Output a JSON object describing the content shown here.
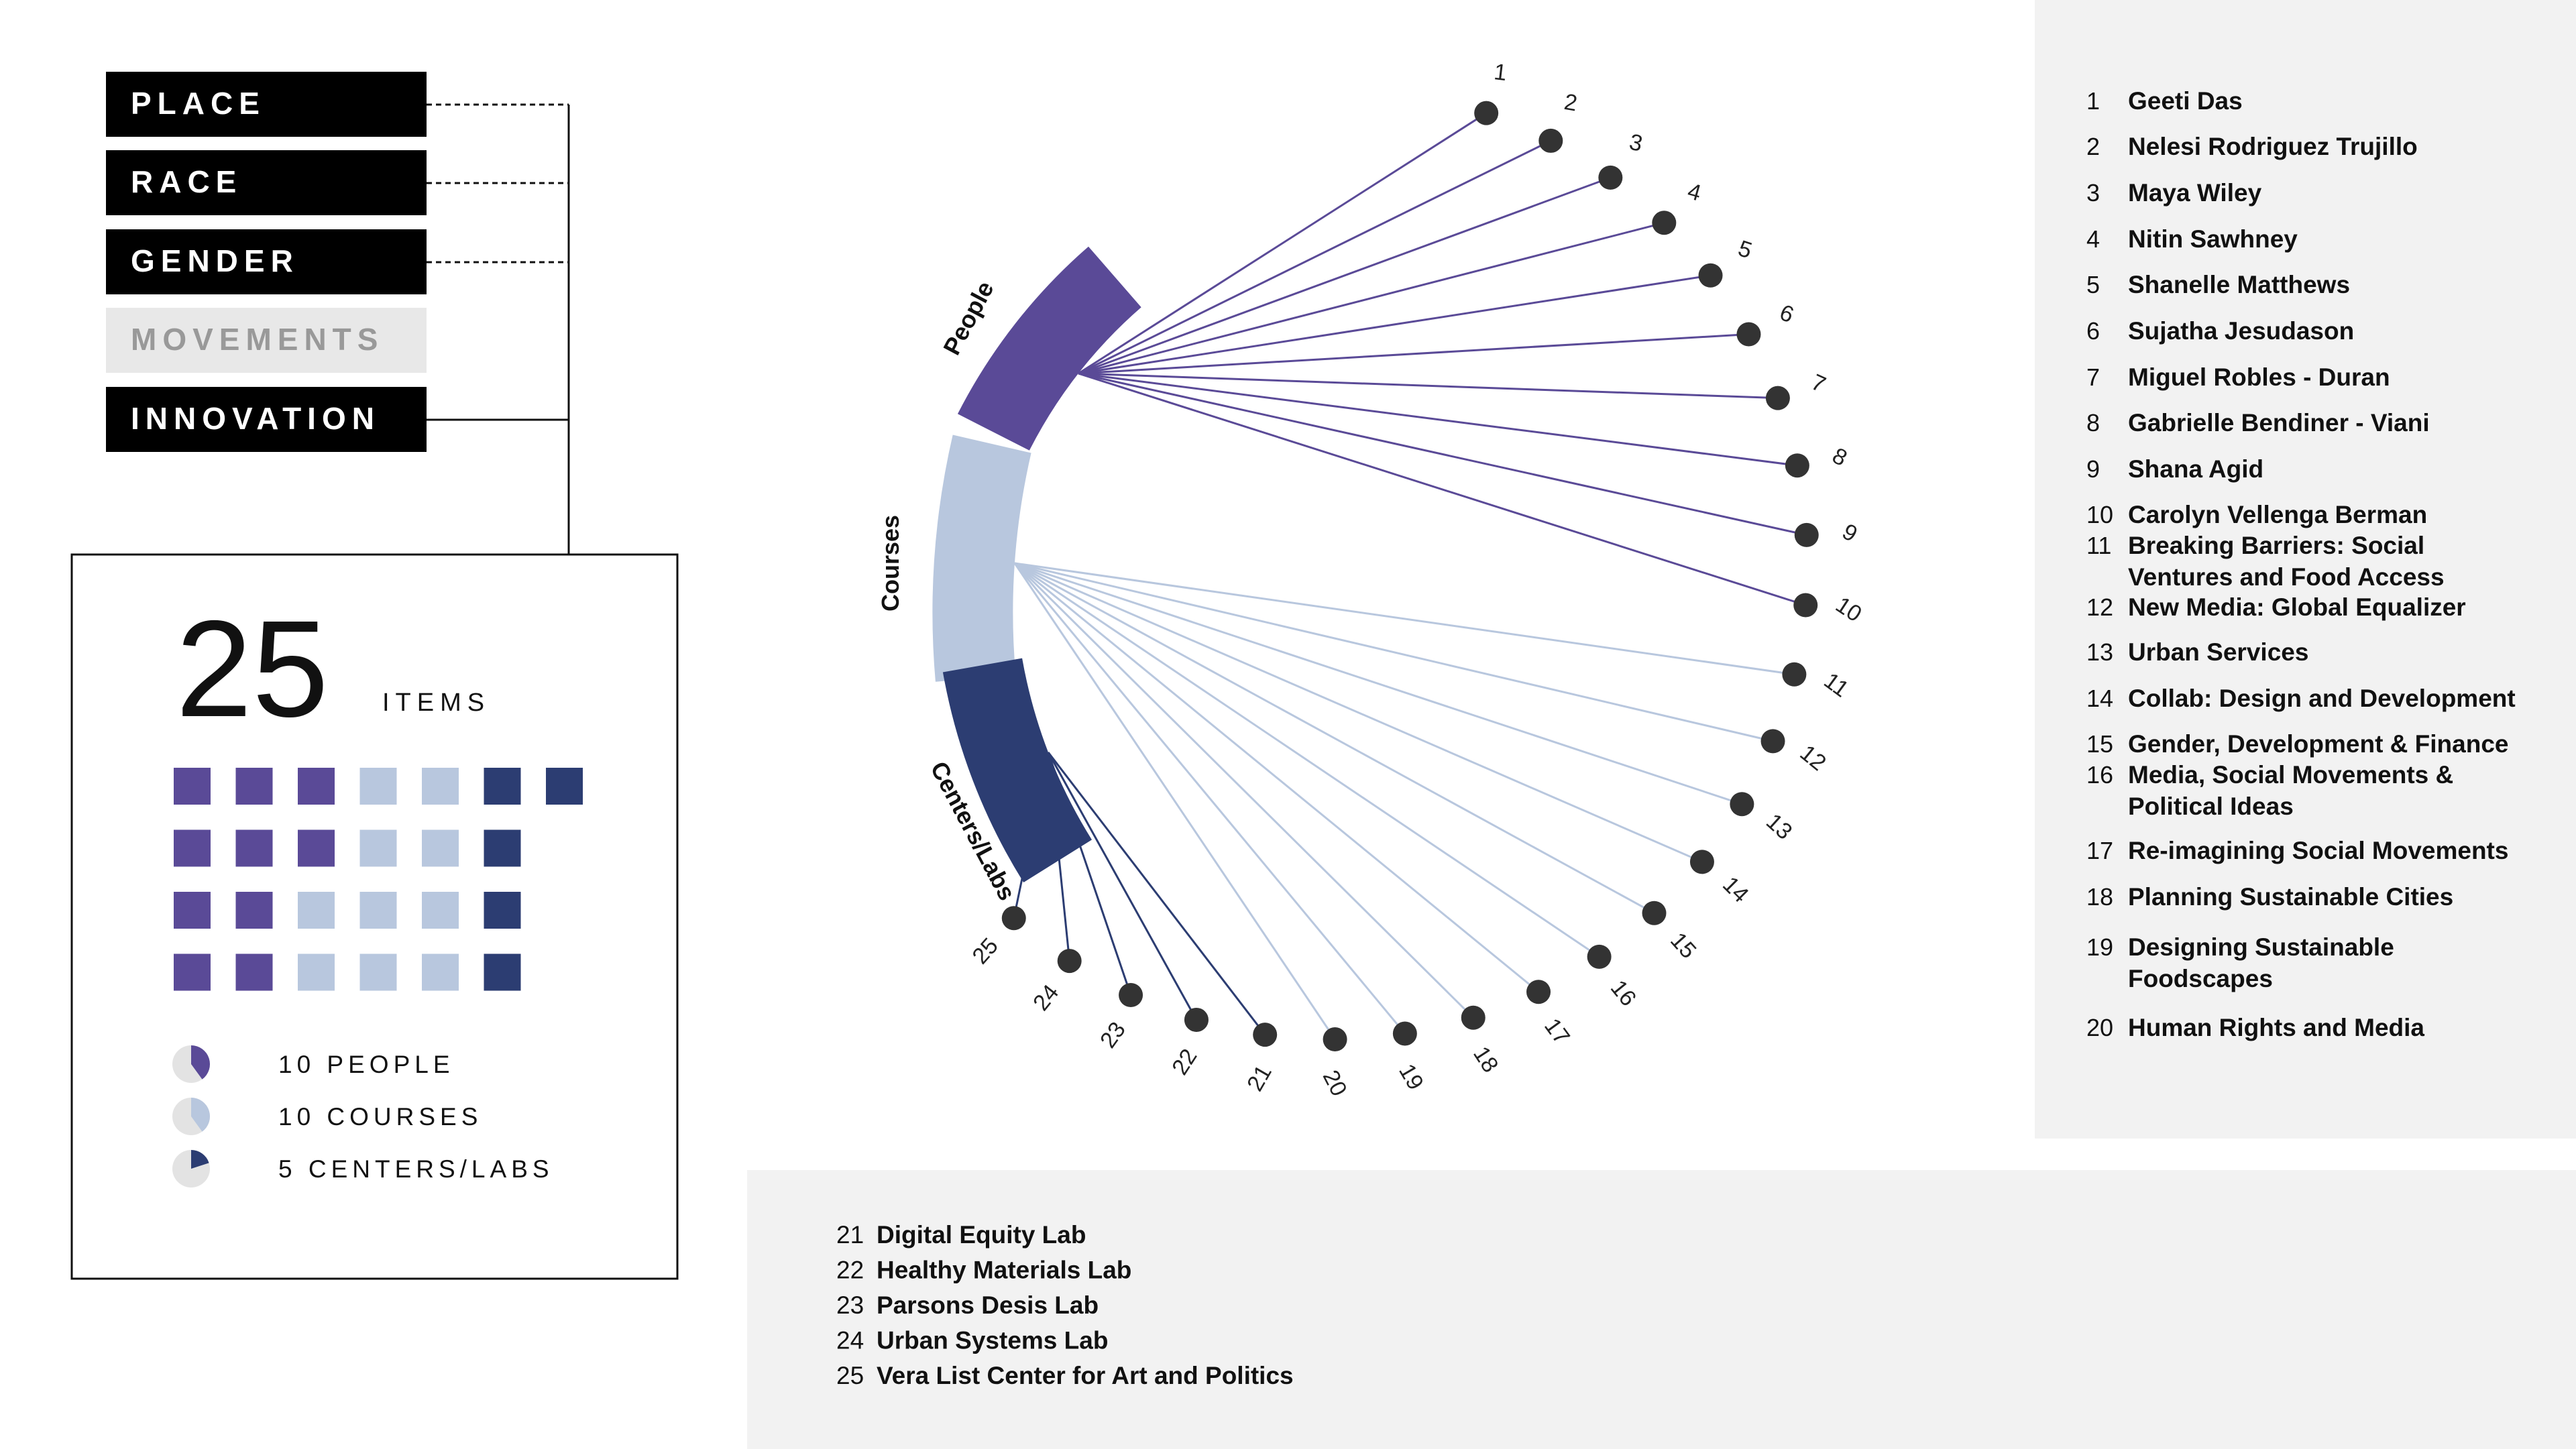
{
  "categories": [
    {
      "label": "PLACE",
      "active": true,
      "connector": "dashed"
    },
    {
      "label": "RACE",
      "active": true,
      "connector": "dashed"
    },
    {
      "label": "GENDER",
      "active": true,
      "connector": "dashed"
    },
    {
      "label": "MOVEMENTS",
      "active": false,
      "connector": "none"
    },
    {
      "label": "INNOVATION",
      "active": true,
      "connector": "solid"
    }
  ],
  "summary": {
    "total": "25",
    "total_label": "ITEMS",
    "grid_rows": [
      [
        "people",
        "people",
        "people",
        "courses",
        "courses",
        "centers",
        "centers"
      ],
      [
        "people",
        "people",
        "people",
        "courses",
        "courses",
        "centers"
      ],
      [
        "people",
        "people",
        "courses",
        "courses",
        "courses",
        "centers"
      ],
      [
        "people",
        "people",
        "courses",
        "courses",
        "courses",
        "centers"
      ]
    ],
    "legend": [
      {
        "label": "10 PEOPLE",
        "group": "people",
        "fraction": 0.4
      },
      {
        "label": "10 COURSES",
        "group": "courses",
        "fraction": 0.4
      },
      {
        "label": "5 CENTERS/LABS",
        "group": "centers",
        "fraction": 0.2
      }
    ]
  },
  "colors": {
    "people": "#5a4a97",
    "courses": "#b8c7de",
    "centers": "#2c3d72",
    "node": "#333333",
    "panel": "#f2f2f2",
    "inactive": "#e8e8e8",
    "inactive_text": "#999999",
    "pie_bg": "#e3e3e3"
  },
  "chart_data": {
    "type": "radial-network",
    "groups": [
      {
        "label": "People",
        "key": "people",
        "nodes": [
          1,
          2,
          3,
          4,
          5,
          6,
          7,
          8,
          9,
          10
        ]
      },
      {
        "label": "Courses",
        "key": "courses",
        "nodes": [
          11,
          12,
          13,
          14,
          15,
          16,
          17,
          18,
          19,
          20
        ]
      },
      {
        "label": "Centers/Labs",
        "key": "centers",
        "nodes": [
          21,
          22,
          23,
          24,
          25
        ]
      }
    ],
    "nodes": [
      {
        "num": "1",
        "name": "Geeti Das"
      },
      {
        "num": "2",
        "name": "Nelesi Rodriguez Trujillo"
      },
      {
        "num": "3",
        "name": "Maya Wiley"
      },
      {
        "num": "4",
        "name": "Nitin Sawhney"
      },
      {
        "num": "5",
        "name": "Shanelle Matthews"
      },
      {
        "num": "6",
        "name": "Sujatha Jesudason"
      },
      {
        "num": "7",
        "name": "Miguel Robles - Duran"
      },
      {
        "num": "8",
        "name": "Gabrielle Bendiner - Viani"
      },
      {
        "num": "9",
        "name": "Shana Agid"
      },
      {
        "num": "10",
        "name": "Carolyn Vellenga Berman"
      },
      {
        "num": "11",
        "name": "Breaking Barriers: Social Ventures and Food Access"
      },
      {
        "num": "12",
        "name": "New Media: Global Equalizer"
      },
      {
        "num": "13",
        "name": "Urban Services"
      },
      {
        "num": "14",
        "name": "Collab: Design and Development"
      },
      {
        "num": "15",
        "name": "Gender, Development & Finance"
      },
      {
        "num": "16",
        "name": "Media, Social Movements & Political Ideas"
      },
      {
        "num": "17",
        "name": "Re-imagining Social Movements"
      },
      {
        "num": "18",
        "name": "Planning Sustainable Cities"
      },
      {
        "num": "19",
        "name": "Designing Sustainable Foodscapes"
      },
      {
        "num": "20",
        "name": "Human Rights and Media"
      },
      {
        "num": "21",
        "name": "Digital Equity Lab"
      },
      {
        "num": "22",
        "name": "Healthy Materials Lab"
      },
      {
        "num": "23",
        "name": "Parsons Desis Lab"
      },
      {
        "num": "24",
        "name": "Urban Systems Lab"
      },
      {
        "num": "25",
        "name": "Vera List Center for Art and Politics"
      }
    ]
  }
}
